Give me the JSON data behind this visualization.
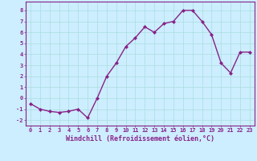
{
  "x": [
    0,
    1,
    2,
    3,
    4,
    5,
    6,
    7,
    8,
    9,
    10,
    11,
    12,
    13,
    14,
    15,
    16,
    17,
    18,
    19,
    20,
    21,
    22,
    23
  ],
  "y": [
    -0.5,
    -1.0,
    -1.2,
    -1.3,
    -1.2,
    -1.0,
    -1.8,
    0.0,
    2.0,
    3.2,
    4.7,
    5.5,
    6.5,
    6.0,
    6.8,
    7.0,
    8.0,
    8.0,
    7.0,
    5.8,
    3.2,
    2.3,
    4.2,
    4.2
  ],
  "line_color": "#882288",
  "marker": "D",
  "marker_size": 2.0,
  "bg_color": "#cceeff",
  "grid_color": "#aadddd",
  "xlabel": "Windchill (Refroidissement éolien,°C)",
  "xlabel_color": "#882288",
  "tick_color": "#882288",
  "axis_color": "#882288",
  "ylim": [
    -2.5,
    8.8
  ],
  "xlim": [
    -0.5,
    23.5
  ],
  "yticks": [
    -2,
    -1,
    0,
    1,
    2,
    3,
    4,
    5,
    6,
    7,
    8
  ],
  "xticks": [
    0,
    1,
    2,
    3,
    4,
    5,
    6,
    7,
    8,
    9,
    10,
    11,
    12,
    13,
    14,
    15,
    16,
    17,
    18,
    19,
    20,
    21,
    22,
    23
  ],
  "linewidth": 1.0,
  "tick_fontsize": 5.0,
  "xlabel_fontsize": 6.0
}
